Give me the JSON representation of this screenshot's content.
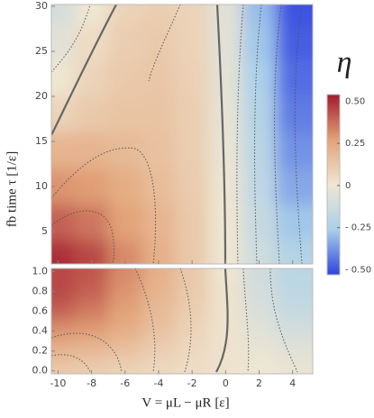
{
  "chart_data": {
    "type": "contour",
    "x_label": "V = μL − μR   [ε]",
    "y_label": "fb time τ   [1/ε]",
    "colorbar_label": "η",
    "x": [
      -10,
      -8,
      -6,
      -4,
      -2,
      0,
      2,
      4
    ],
    "xlim": [
      -10.4,
      5.2
    ],
    "xticks": [
      -10,
      -8,
      -6,
      -4,
      -2,
      0,
      2,
      4
    ],
    "colors": [
      "#2f43e0",
      "#a9d0ea",
      "#efe6d2",
      "#e2a276",
      "#a31a2e"
    ],
    "zlim": [
      -0.53,
      0.54
    ],
    "zticks": [
      {
        "value": 0.5,
        "label": "0.50"
      },
      0.25,
      0,
      {
        "value": -0.25,
        "label": "- 0.25"
      },
      {
        "value": -0.5,
        "label": "- 0.50"
      }
    ],
    "panels": [
      {
        "y": [
          30,
          26,
          22,
          18,
          14,
          10,
          6,
          2
        ],
        "ylim": [
          1.4,
          30.2
        ],
        "yticks": [
          5,
          10,
          15,
          20,
          25,
          30
        ],
        "z": [
          [
            -0.1,
            0.0,
            0.08,
            0.1,
            0.08,
            -0.05,
            -0.3,
            -0.5
          ],
          [
            -0.05,
            0.05,
            0.1,
            0.12,
            0.08,
            -0.05,
            -0.28,
            -0.48
          ],
          [
            0.0,
            0.08,
            0.12,
            0.13,
            0.09,
            -0.04,
            -0.25,
            -0.45
          ],
          [
            0.08,
            0.12,
            0.14,
            0.14,
            0.1,
            -0.03,
            -0.22,
            -0.42
          ],
          [
            0.2,
            0.2,
            0.18,
            0.15,
            0.1,
            -0.02,
            -0.2,
            -0.38
          ],
          [
            0.3,
            0.28,
            0.23,
            0.17,
            0.11,
            -0.01,
            -0.18,
            -0.34
          ],
          [
            0.4,
            0.36,
            0.27,
            0.2,
            0.12,
            0,
            -0.15,
            -0.28
          ],
          [
            0.5,
            0.45,
            0.32,
            0.22,
            0.12,
            0,
            -0.12,
            -0.22
          ]
        ]
      },
      {
        "y": [
          1.0,
          0.8,
          0.6,
          0.4,
          0.2,
          0.0
        ],
        "ylim": [
          -0.03,
          1.03
        ],
        "yticks": [
          {
            "value": 0,
            "label": "0.0"
          },
          0.2,
          0.4,
          0.6,
          0.8,
          {
            "value": 1,
            "label": "1.0"
          }
        ],
        "z": [
          [
            0.45,
            0.42,
            0.32,
            0.22,
            0.12,
            0,
            -0.12,
            -0.2
          ],
          [
            0.45,
            0.4,
            0.3,
            0.2,
            0.12,
            0.02,
            -0.1,
            -0.18
          ],
          [
            0.4,
            0.35,
            0.27,
            0.18,
            0.1,
            0.02,
            -0.08,
            -0.15
          ],
          [
            0.3,
            0.28,
            0.22,
            0.15,
            0.08,
            0.02,
            -0.05,
            -0.1
          ],
          [
            0.2,
            0.18,
            0.15,
            0.1,
            0.06,
            0.02,
            -0.02,
            -0.05
          ],
          [
            0.12,
            0.1,
            0.08,
            0.06,
            0.04,
            0.02,
            0,
            -0.02
          ]
        ]
      }
    ]
  }
}
